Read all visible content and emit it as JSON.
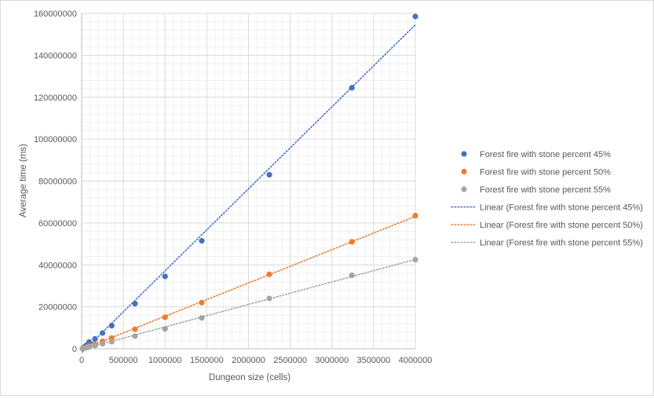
{
  "chart_data": {
    "type": "scatter",
    "xlabel": "Dungeon size (cells)",
    "ylabel": "Average time (ms)",
    "xlim": [
      0,
      4000000
    ],
    "ylim": [
      0,
      160000000
    ],
    "x_ticks": [
      0,
      500000,
      1000000,
      1500000,
      2000000,
      2500000,
      3000000,
      3500000,
      4000000
    ],
    "y_ticks": [
      0,
      20000000,
      40000000,
      60000000,
      80000000,
      100000000,
      120000000,
      140000000,
      160000000
    ],
    "x_tick_labels": [
      "0",
      "500000",
      "1000000",
      "1500000",
      "2000000",
      "2500000",
      "3000000",
      "3500000",
      "4000000"
    ],
    "y_tick_labels": [
      "0",
      "20000000",
      "40000000",
      "60000000",
      "80000000",
      "100000000",
      "120000000",
      "140000000",
      "160000000"
    ],
    "grid": true,
    "minor_grid": true,
    "legend_position": "right",
    "series": [
      {
        "name": "Forest fire with stone percent 45%",
        "trend_name": "Linear (Forest fire with stone percent 45%)",
        "color": "#4472C4",
        "x": [
          10000,
          22500,
          40000,
          62500,
          90000,
          160000,
          250000,
          360000,
          640000,
          1000000,
          1440000,
          2250000,
          3240000,
          4000000
        ],
        "y": [
          150000,
          500000,
          1100000,
          1800000,
          3200000,
          4700000,
          7500000,
          11000000,
          21500000,
          34500000,
          51500000,
          83000000,
          124500000,
          158500000
        ]
      },
      {
        "name": "Forest fire with stone percent 50%",
        "trend_name": "Linear (Forest fire with stone percent 50%)",
        "color": "#ED7D31",
        "x": [
          10000,
          22500,
          40000,
          62500,
          90000,
          160000,
          250000,
          360000,
          640000,
          1000000,
          1440000,
          2250000,
          3240000,
          4000000
        ],
        "y": [
          80000,
          250000,
          500000,
          800000,
          1300000,
          2200000,
          3500000,
          5100000,
          9300000,
          15000000,
          22000000,
          35500000,
          51000000,
          63500000
        ]
      },
      {
        "name": "Forest fire with stone percent 55%",
        "trend_name": "Linear (Forest fire with stone percent 55%)",
        "color": "#A5A5A5",
        "x": [
          10000,
          22500,
          40000,
          62500,
          90000,
          160000,
          250000,
          360000,
          640000,
          1000000,
          1440000,
          2250000,
          3240000,
          4000000
        ],
        "y": [
          50000,
          180000,
          350000,
          550000,
          900000,
          1500000,
          2400000,
          3400000,
          6000000,
          9500000,
          14700000,
          24000000,
          35000000,
          42500000
        ]
      }
    ]
  }
}
